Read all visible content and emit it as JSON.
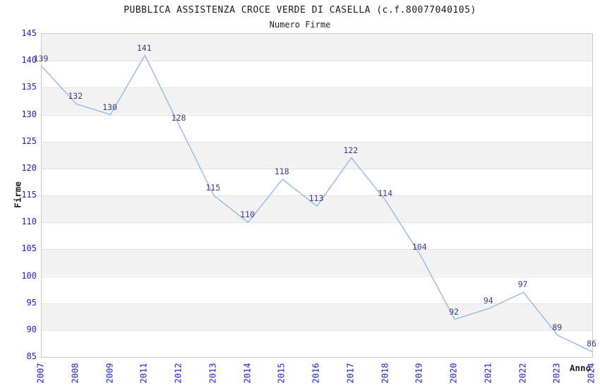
{
  "header": {
    "title": "PUBBLICA ASSISTENZA CROCE VERDE DI CASELLA (c.f.80077040105)",
    "subtitle": "Numero Firme"
  },
  "chart_data": {
    "type": "line",
    "title": "PUBBLICA ASSISTENZA CROCE VERDE DI CASELLA (c.f.80077040105)",
    "subtitle": "Numero Firme",
    "xlabel": "Anno",
    "ylabel": "Firme",
    "categories": [
      "2007",
      "2008",
      "2009",
      "2011",
      "2012",
      "2013",
      "2014",
      "2015",
      "2016",
      "2017",
      "2018",
      "2019",
      "2020",
      "2021",
      "2022",
      "2023",
      "2024"
    ],
    "values": [
      139,
      132,
      130,
      141,
      128,
      115,
      110,
      118,
      113,
      122,
      114,
      104,
      92,
      94,
      97,
      89,
      86
    ],
    "ylim": [
      85,
      145
    ],
    "ytick_step": 5,
    "yticks": [
      85,
      90,
      95,
      100,
      105,
      110,
      115,
      120,
      125,
      130,
      135,
      140,
      145
    ],
    "grid": true,
    "legend": "none",
    "data_labels_shown": true,
    "colors": {
      "line": "#8ab6e8",
      "point_label": "#3a3a85",
      "tick_label": "#2020cc",
      "band_a": "#f2f2f2",
      "band_b": "#ffffff",
      "gridline": "#e2e2e2",
      "plot_border": "#c8c8c8",
      "title_text": "#1a1a1a",
      "axis_title_text": "#222222"
    }
  }
}
